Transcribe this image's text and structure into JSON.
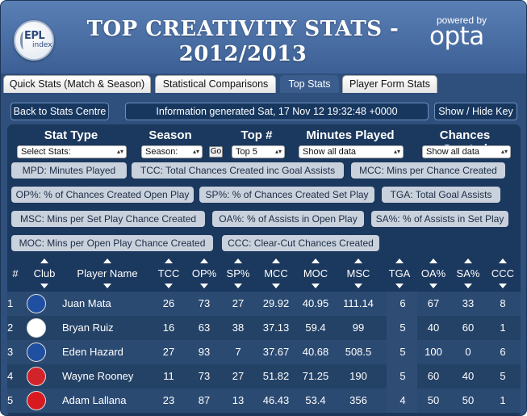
{
  "header": {
    "logo": {
      "line1": "EPL",
      "line2": "index"
    },
    "title_line1": "TOP CREATIVITY STATS -",
    "title_line2": "2012/2013",
    "powered_by": "powered by",
    "brand": "opta"
  },
  "tabs": [
    {
      "label": "Quick Stats (Match & Season)",
      "active": false
    },
    {
      "label": "Statistical Comparisons",
      "active": false
    },
    {
      "label": "Top Stats",
      "active": true
    },
    {
      "label": "Player Form Stats",
      "active": false
    }
  ],
  "nav": {
    "back": "Back to Stats Centre",
    "info": "Information generated Sat, 17 Nov 12 19:32:48 +0000",
    "toggle": "Show / Hide Key"
  },
  "filters": {
    "stat_type": {
      "label": "Stat Type",
      "value": "Select Stats:"
    },
    "season": {
      "label": "Season",
      "value": "Season:",
      "go": "Go"
    },
    "top": {
      "label": "Top #",
      "value": "Top 5"
    },
    "minutes": {
      "label": "Minutes Played",
      "value": "Show all data"
    },
    "chances": {
      "label": "Chances Created",
      "value": "Show all data"
    }
  },
  "legend": [
    "MPD: Minutes Played",
    "TCC: Total Chances Created inc Goal Assists",
    "MCC: Mins per Chance Created",
    "OP%: % of Chances Created Open Play",
    "SP%: % of Chances Created Set Play",
    "TGA: Total Goal Assists",
    "MSC: Mins per Set Play Chance Created",
    "OA%: % of Assists in Open Play",
    "SA%: % of Assists in Set Play",
    "MOC: Mins per Open Play Chance Created",
    "CCC: Clear-Cut Chances Created"
  ],
  "table": {
    "columns": [
      "#",
      "Club",
      "Player Name",
      "TCC",
      "OP%",
      "SP%",
      "MCC",
      "MOC",
      "MSC",
      "TGA",
      "OA%",
      "SA%",
      "CCC"
    ],
    "rows": [
      {
        "rank": "1",
        "club": "chelsea",
        "player": "Juan Mata",
        "tcc": "26",
        "op": "73",
        "sp": "27",
        "mcc": "29.92",
        "moc": "40.95",
        "msc": "111.14",
        "tga": "6",
        "oa": "67",
        "sa": "33",
        "ccc": "8"
      },
      {
        "rank": "2",
        "club": "fulham",
        "player": "Bryan Ruiz",
        "tcc": "16",
        "op": "63",
        "sp": "38",
        "mcc": "37.13",
        "moc": "59.4",
        "msc": "99",
        "tga": "5",
        "oa": "40",
        "sa": "60",
        "ccc": "1"
      },
      {
        "rank": "3",
        "club": "chelsea",
        "player": "Eden Hazard",
        "tcc": "27",
        "op": "93",
        "sp": "7",
        "mcc": "37.67",
        "moc": "40.68",
        "msc": "508.5",
        "tga": "5",
        "oa": "100",
        "sa": "0",
        "ccc": "6"
      },
      {
        "rank": "4",
        "club": "man-utd",
        "player": "Wayne Rooney",
        "tcc": "11",
        "op": "73",
        "sp": "27",
        "mcc": "51.82",
        "moc": "71.25",
        "msc": "190",
        "tga": "5",
        "oa": "60",
        "sa": "40",
        "ccc": "5"
      },
      {
        "rank": "5",
        "club": "southampton",
        "player": "Adam Lallana",
        "tcc": "23",
        "op": "87",
        "sp": "13",
        "mcc": "46.43",
        "moc": "53.4",
        "msc": "356",
        "tga": "4",
        "oa": "50",
        "sa": "50",
        "ccc": "1"
      }
    ]
  },
  "colors": {
    "chelsea": "#1f4fa0",
    "fulham": "#ffffff",
    "man-utd": "#d2232a",
    "southampton": "#d71920",
    "tga_stripe": "#2f4d74",
    "row_a": "#2b4a72",
    "row_b": "#244266"
  }
}
